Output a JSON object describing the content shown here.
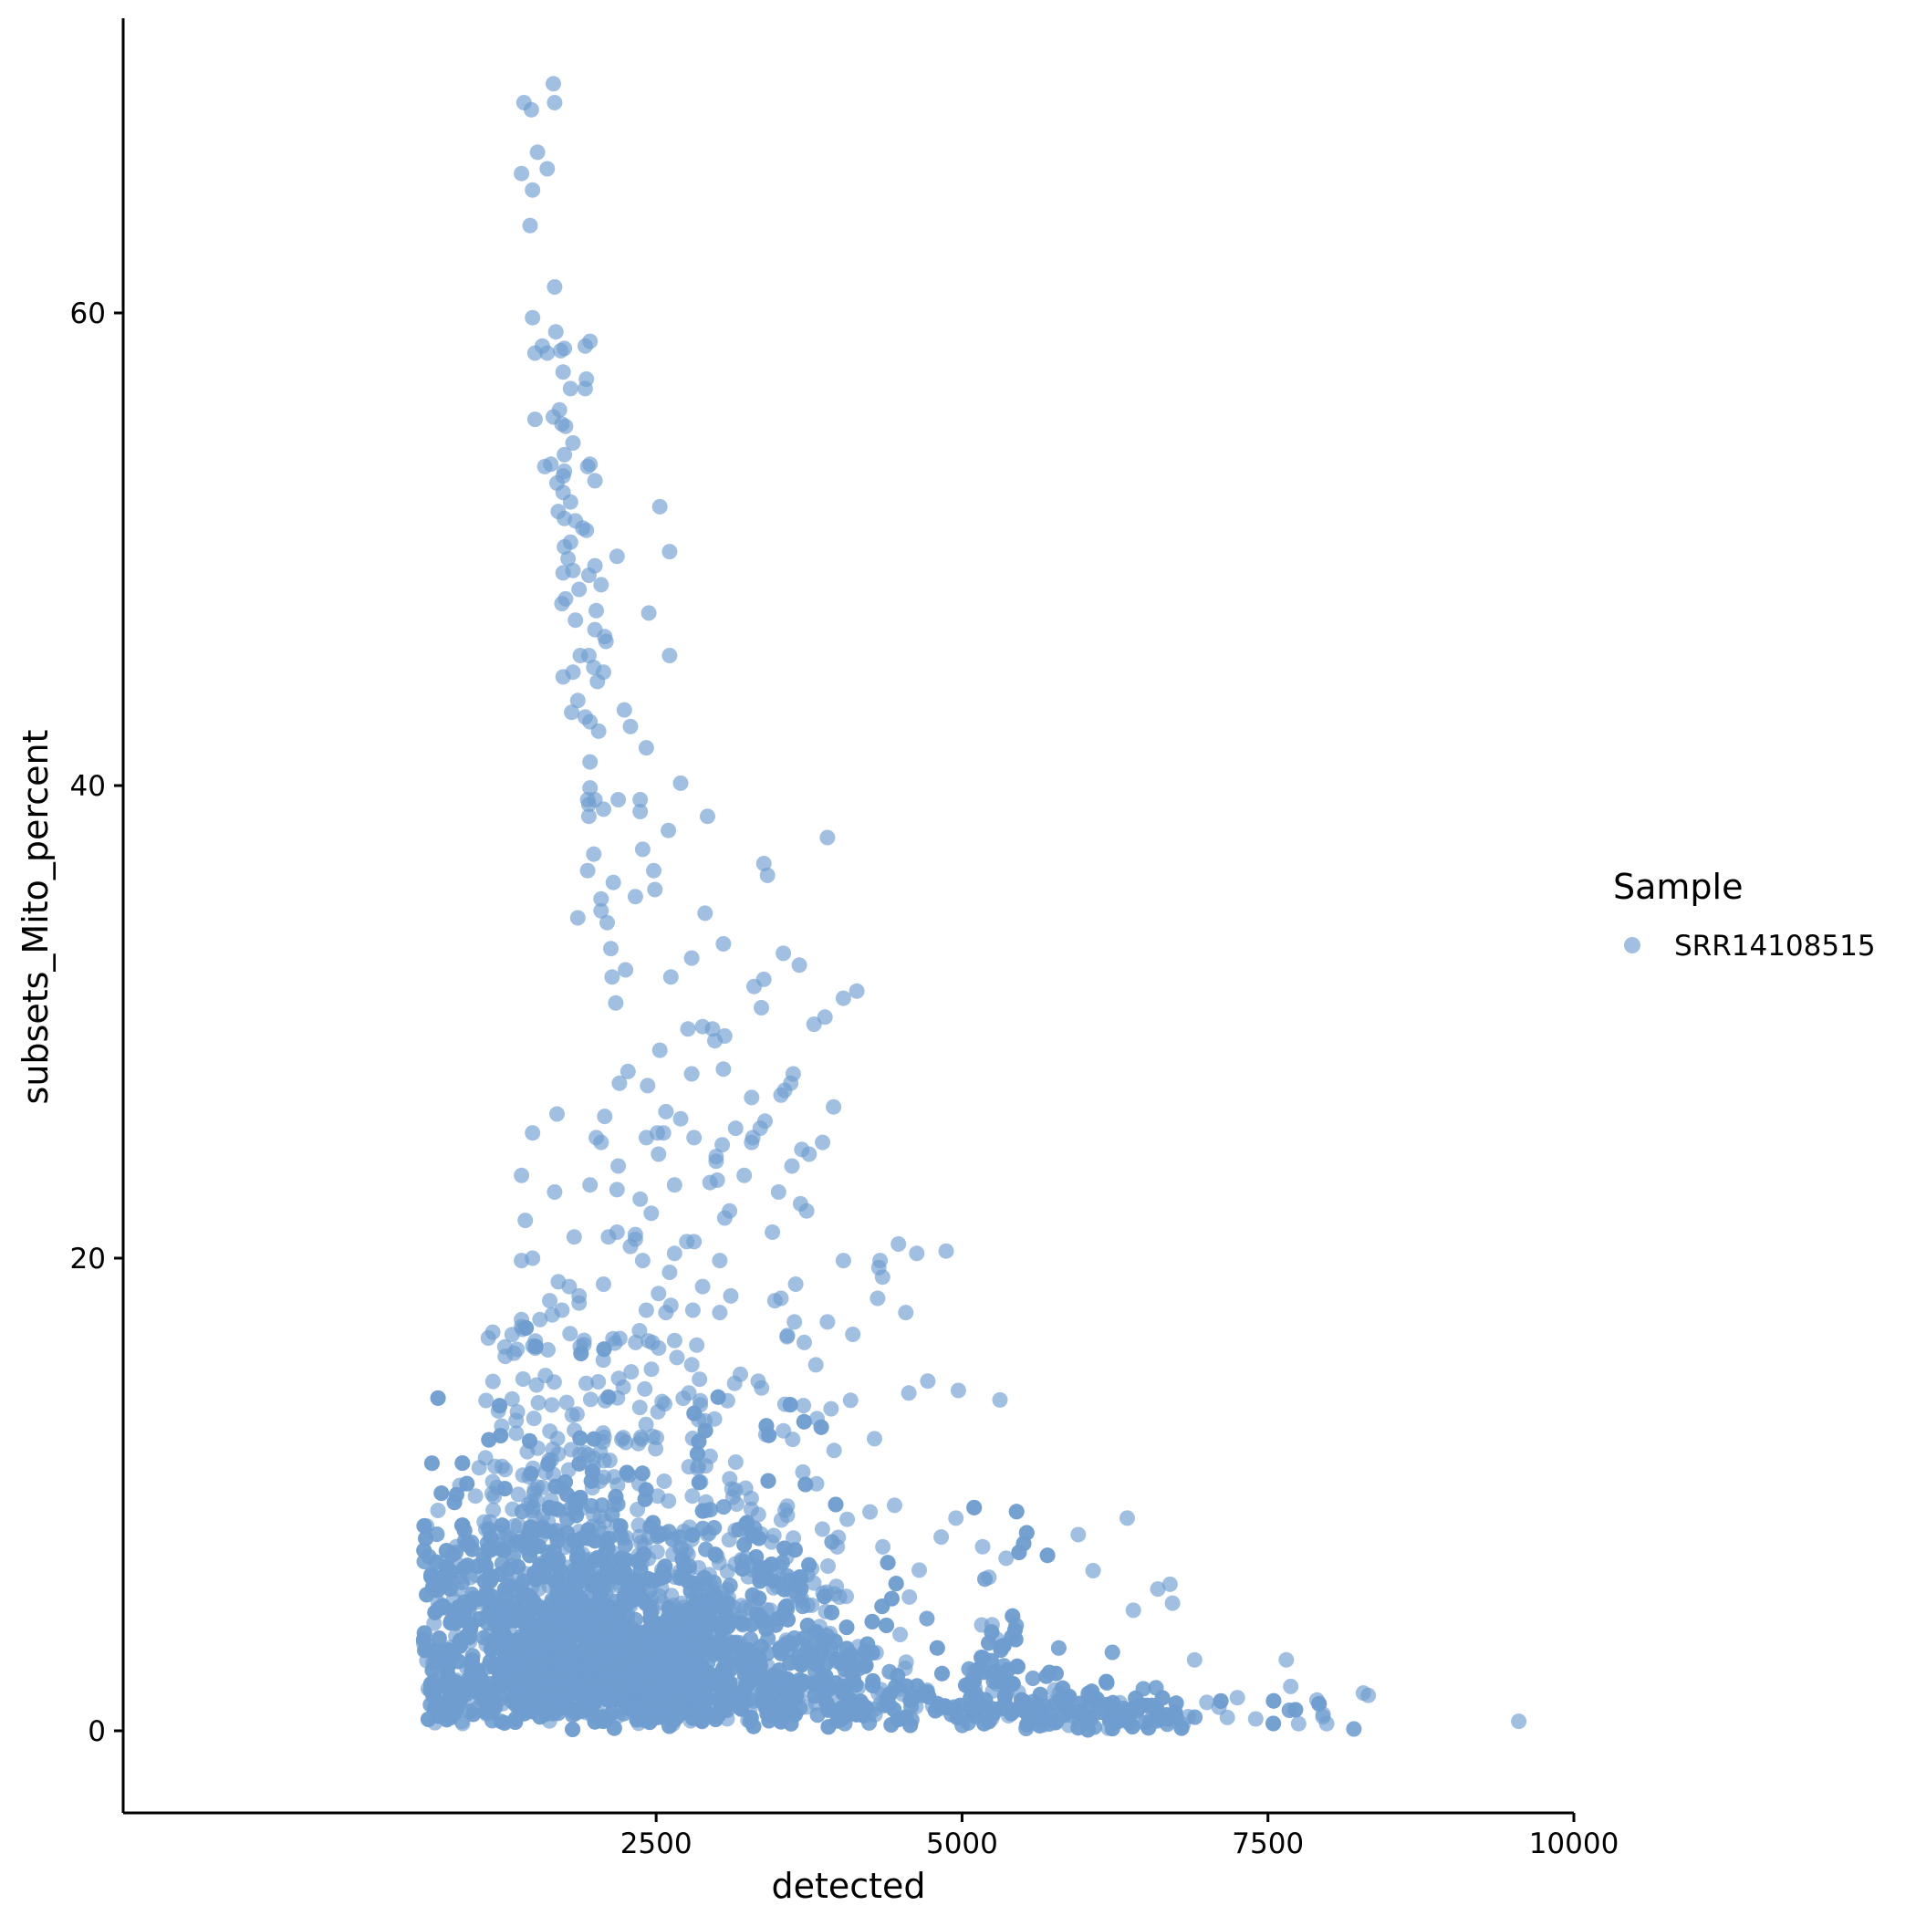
{
  "chart_data": {
    "type": "scatter",
    "title": "",
    "xlabel": "detected",
    "ylabel": "subsets_Mito_percent",
    "xlim": [
      100,
      10000
    ],
    "ylim": [
      -3,
      72
    ],
    "x_ticks": [
      2500,
      5000,
      7500,
      10000
    ],
    "x_tick_labels": [
      "2500",
      "5000",
      "7500",
      "10000"
    ],
    "y_ticks": [
      0,
      20,
      40,
      60
    ],
    "y_tick_labels": [
      "0",
      "20",
      "40",
      "60"
    ],
    "grid": false,
    "legend": {
      "title": "Sample",
      "placement": "right",
      "entries": [
        "SRR14108515"
      ]
    },
    "colors": {
      "points": "#6f9ccf",
      "axis": "#000000"
    },
    "point_alpha": 0.65,
    "series": [
      {
        "name": "SRR14108515",
        "approx_n_points": 5000,
        "points_upper_tail": [
          [
            1420,
            68.9
          ],
          [
            1480,
            68.6
          ],
          [
            1660,
            69.7
          ],
          [
            1670,
            68.9
          ],
          [
            1530,
            66.8
          ],
          [
            1610,
            66.1
          ],
          [
            1400,
            65.9
          ],
          [
            1490,
            65.2
          ],
          [
            1470,
            63.7
          ],
          [
            1670,
            61.1
          ],
          [
            1490,
            59.8
          ],
          [
            1680,
            59.2
          ],
          [
            1570,
            58.6
          ],
          [
            1750,
            58.5
          ],
          [
            1720,
            58.4
          ],
          [
            1610,
            58.3
          ],
          [
            1510,
            58.3
          ],
          [
            1960,
            58.8
          ],
          [
            1920,
            58.6
          ],
          [
            1740,
            57.5
          ],
          [
            1930,
            57.2
          ],
          [
            1920,
            56.8
          ],
          [
            1800,
            56.8
          ],
          [
            1710,
            55.9
          ],
          [
            1660,
            55.6
          ],
          [
            1510,
            55.5
          ],
          [
            1730,
            55.3
          ],
          [
            1760,
            55.2
          ],
          [
            1820,
            54.5
          ],
          [
            1750,
            54.0
          ],
          [
            1640,
            53.6
          ],
          [
            1590,
            53.5
          ],
          [
            1940,
            53.5
          ],
          [
            1960,
            53.6
          ],
          [
            1750,
            53.3
          ],
          [
            1740,
            53.1
          ],
          [
            2000,
            52.9
          ],
          [
            1690,
            52.8
          ],
          [
            1740,
            52.4
          ],
          [
            1800,
            52.0
          ],
          [
            2530,
            51.8
          ],
          [
            1700,
            51.6
          ],
          [
            1750,
            51.3
          ],
          [
            1840,
            51.2
          ],
          [
            1900,
            50.9
          ],
          [
            1930,
            50.8
          ],
          [
            1800,
            50.3
          ],
          [
            1750,
            50.1
          ],
          [
            2610,
            49.9
          ],
          [
            2180,
            49.7
          ],
          [
            1780,
            49.6
          ],
          [
            1820,
            49.1
          ],
          [
            1740,
            49.0
          ],
          [
            1950,
            48.9
          ],
          [
            2000,
            49.3
          ],
          [
            2050,
            48.5
          ],
          [
            1870,
            48.3
          ],
          [
            1760,
            47.9
          ],
          [
            1730,
            47.7
          ],
          [
            2440,
            47.3
          ],
          [
            2010,
            47.4
          ],
          [
            1840,
            47.0
          ],
          [
            2000,
            46.6
          ],
          [
            2080,
            46.3
          ],
          [
            2090,
            46.1
          ],
          [
            1880,
            45.5
          ],
          [
            1950,
            45.5
          ],
          [
            2610,
            45.5
          ],
          [
            1990,
            45.0
          ],
          [
            1820,
            44.8
          ],
          [
            1740,
            44.6
          ],
          [
            2070,
            44.8
          ],
          [
            2020,
            44.4
          ],
          [
            1860,
            43.6
          ],
          [
            2240,
            43.2
          ],
          [
            1810,
            43.1
          ],
          [
            1920,
            42.9
          ],
          [
            1960,
            42.7
          ],
          [
            2290,
            42.5
          ],
          [
            2030,
            42.3
          ],
          [
            2420,
            41.6
          ],
          [
            1960,
            41.0
          ],
          [
            2700,
            40.1
          ],
          [
            1960,
            39.9
          ],
          [
            2370,
            39.4
          ],
          [
            1940,
            39.4
          ],
          [
            2000,
            39.4
          ],
          [
            1950,
            39.2
          ],
          [
            2190,
            39.4
          ],
          [
            2070,
            39.0
          ],
          [
            2370,
            38.9
          ],
          [
            1950,
            38.7
          ],
          [
            2920,
            38.7
          ],
          [
            2600,
            38.1
          ],
          [
            3900,
            37.8
          ],
          [
            2390,
            37.3
          ],
          [
            1990,
            37.1
          ],
          [
            3380,
            36.7
          ],
          [
            1940,
            36.4
          ],
          [
            2480,
            36.4
          ],
          [
            3410,
            36.2
          ],
          [
            2150,
            35.9
          ],
          [
            2490,
            35.6
          ],
          [
            2330,
            35.3
          ],
          [
            2050,
            35.2
          ],
          [
            2050,
            34.7
          ],
          [
            1860,
            34.4
          ],
          [
            2100,
            34.2
          ],
          [
            2900,
            34.6
          ],
          [
            3050,
            33.3
          ],
          [
            2130,
            33.1
          ],
          [
            3540,
            32.9
          ],
          [
            2790,
            32.7
          ],
          [
            3670,
            32.4
          ],
          [
            2250,
            32.2
          ],
          [
            2140,
            31.9
          ],
          [
            2620,
            31.9
          ],
          [
            3380,
            31.8
          ],
          [
            3300,
            31.5
          ],
          [
            4140,
            31.3
          ],
          [
            4030,
            31.0
          ],
          [
            2170,
            30.8
          ],
          [
            3360,
            30.6
          ],
          [
            3880,
            30.2
          ],
          [
            3790,
            29.9
          ],
          [
            2880,
            29.8
          ],
          [
            2760,
            29.7
          ],
          [
            2960,
            29.7
          ],
          [
            3060,
            29.4
          ],
          [
            2980,
            29.2
          ],
          [
            2530,
            28.8
          ],
          [
            3050,
            28.0
          ],
          [
            2790,
            27.8
          ],
          [
            2270,
            27.9
          ],
          [
            3620,
            27.8
          ],
          [
            3600,
            27.4
          ],
          [
            2200,
            27.4
          ],
          [
            2430,
            27.3
          ],
          [
            3550,
            27.1
          ],
          [
            3520,
            26.9
          ],
          [
            3280,
            26.8
          ],
          [
            3950,
            26.4
          ],
          [
            1690,
            26.1
          ],
          [
            2580,
            26.2
          ],
          [
            2080,
            26.0
          ],
          [
            2700,
            25.9
          ],
          [
            3390,
            25.8
          ],
          [
            3150,
            25.5
          ],
          [
            3350,
            25.5
          ],
          [
            1490,
            25.3
          ],
          [
            2510,
            25.3
          ],
          [
            2560,
            25.3
          ],
          [
            2420,
            25.1
          ],
          [
            2810,
            25.1
          ],
          [
            3290,
            25.1
          ],
          [
            3280,
            24.9
          ],
          [
            2010,
            25.1
          ],
          [
            2050,
            24.9
          ],
          [
            3860,
            24.9
          ],
          [
            3040,
            24.8
          ],
          [
            2520,
            24.4
          ],
          [
            3690,
            24.6
          ],
          [
            3750,
            24.4
          ],
          [
            2990,
            24.3
          ],
          [
            2990,
            24.1
          ],
          [
            3610,
            23.9
          ],
          [
            2190,
            23.9
          ],
          [
            1400,
            23.5
          ],
          [
            3220,
            23.5
          ],
          [
            3000,
            23.3
          ],
          [
            2940,
            23.2
          ],
          [
            1960,
            23.1
          ],
          [
            2650,
            23.1
          ],
          [
            3500,
            22.8
          ],
          [
            2180,
            22.9
          ],
          [
            1670,
            22.8
          ],
          [
            2370,
            22.5
          ],
          [
            3680,
            22.3
          ],
          [
            3730,
            22.0
          ],
          [
            3100,
            22.0
          ],
          [
            2460,
            21.9
          ],
          [
            3060,
            21.7
          ],
          [
            1430,
            21.6
          ],
          [
            3450,
            21.1
          ],
          [
            2180,
            21.1
          ],
          [
            2330,
            21.0
          ],
          [
            2110,
            20.9
          ],
          [
            2330,
            20.8
          ],
          [
            1830,
            20.9
          ],
          [
            2750,
            20.7
          ],
          [
            2810,
            20.7
          ],
          [
            2290,
            20.5
          ],
          [
            4480,
            20.6
          ],
          [
            4870,
            20.3
          ],
          [
            4630,
            20.2
          ],
          [
            2650,
            20.2
          ],
          [
            4030,
            19.9
          ],
          [
            4330,
            19.9
          ],
          [
            3020,
            19.9
          ],
          [
            2390,
            19.9
          ],
          [
            1400,
            19.9
          ],
          [
            1490,
            20.0
          ],
          [
            4320,
            19.6
          ],
          [
            2610,
            19.4
          ],
          [
            4350,
            19.2
          ],
          [
            1700,
            19.0
          ],
          [
            2070,
            18.9
          ],
          [
            1790,
            18.8
          ],
          [
            3640,
            18.9
          ],
          [
            2880,
            18.8
          ],
          [
            2520,
            18.5
          ],
          [
            1870,
            18.4
          ],
          [
            1870,
            18.1
          ],
          [
            3110,
            18.4
          ],
          [
            3520,
            18.3
          ],
          [
            3470,
            18.2
          ],
          [
            2620,
            18.0
          ],
          [
            4310,
            18.3
          ],
          [
            1630,
            18.2
          ],
          [
            1730,
            17.8
          ],
          [
            4540,
            17.7
          ],
          [
            2420,
            17.8
          ],
          [
            2800,
            17.8
          ],
          [
            3020,
            17.7
          ],
          [
            1650,
            17.6
          ],
          [
            2580,
            17.7
          ],
          [
            1550,
            17.4
          ],
          [
            1400,
            17.4
          ],
          [
            1400,
            17.1
          ],
          [
            3630,
            17.3
          ],
          [
            3900,
            17.3
          ]
        ]
      }
    ]
  }
}
